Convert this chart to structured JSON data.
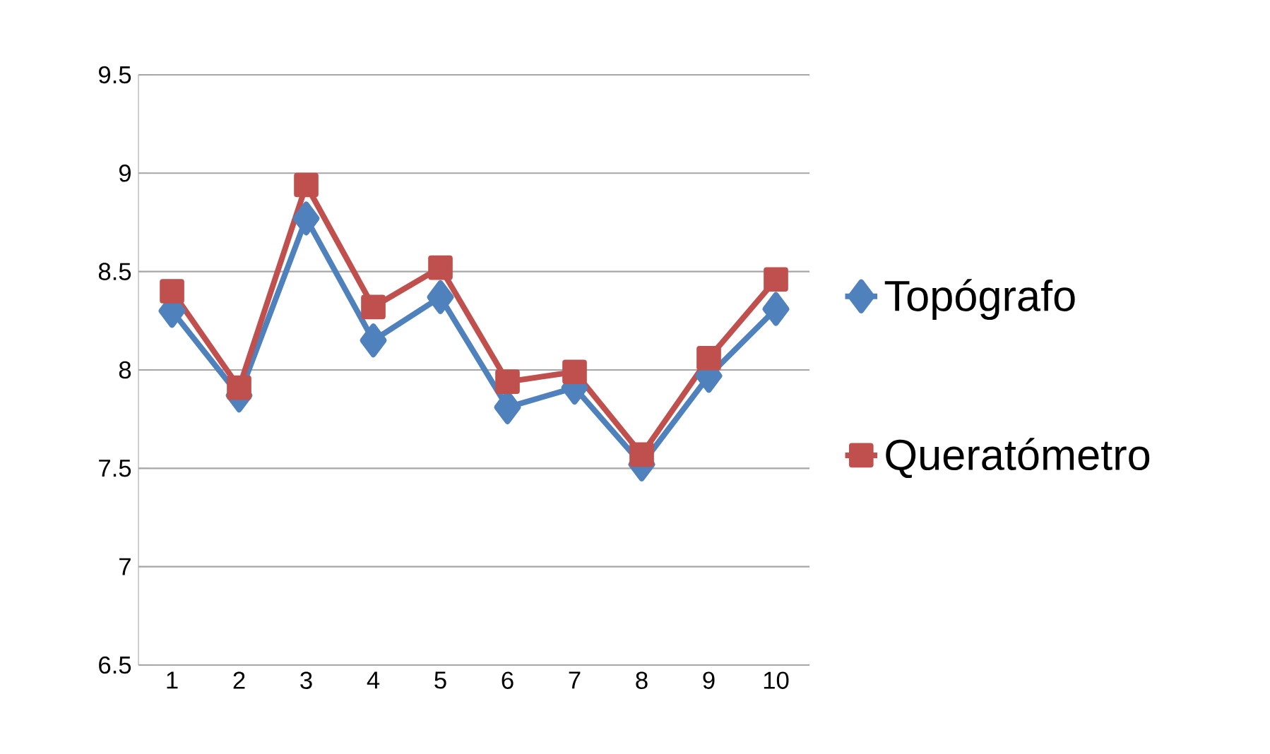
{
  "chart_data": {
    "type": "line",
    "categories": [
      "1",
      "2",
      "3",
      "4",
      "5",
      "6",
      "7",
      "8",
      "9",
      "10"
    ],
    "series": [
      {
        "name": "Topógrafo",
        "color": "#4f81bd",
        "marker": "diamond",
        "values": [
          8.3,
          7.87,
          8.77,
          8.15,
          8.37,
          7.81,
          7.91,
          7.52,
          7.97,
          8.31
        ]
      },
      {
        "name": "Queratómetro",
        "color": "#c0504d",
        "marker": "square",
        "values": [
          8.4,
          7.91,
          8.94,
          8.32,
          8.52,
          7.94,
          7.99,
          7.57,
          8.06,
          8.46
        ]
      }
    ],
    "ylim": [
      6.5,
      9.5
    ],
    "yticks": [
      6.5,
      7,
      7.5,
      8,
      8.5,
      9,
      9.5
    ],
    "grid": "y",
    "legend": "right",
    "line_style": "solid"
  }
}
